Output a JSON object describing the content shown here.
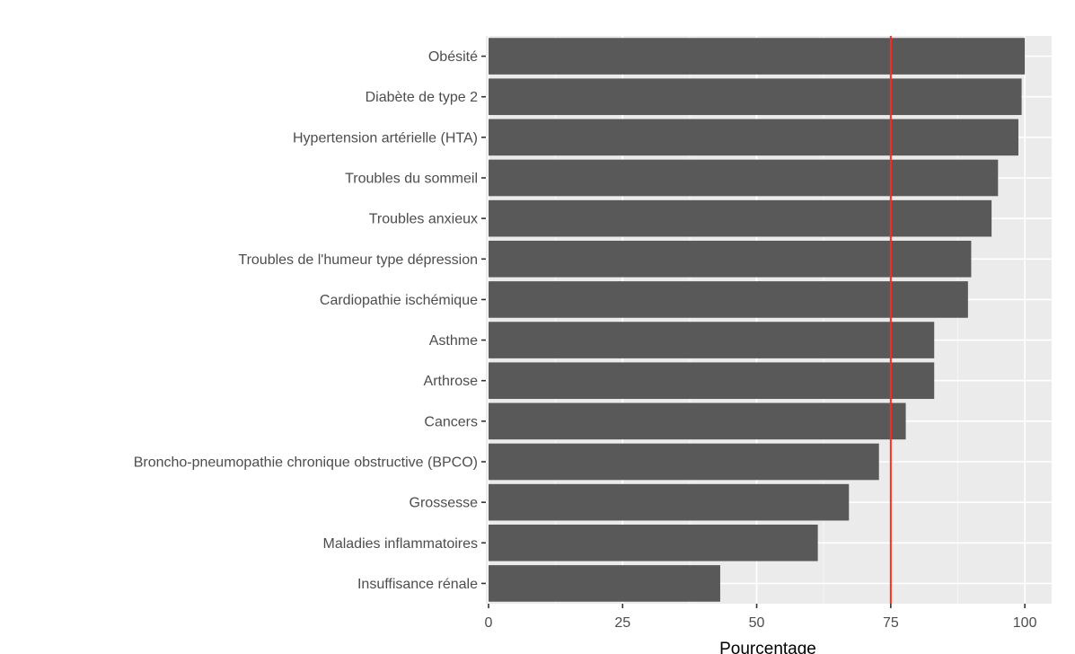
{
  "chart_data": {
    "type": "bar",
    "orientation": "horizontal",
    "categories": [
      "Obésité",
      "Diabète de type 2",
      "Hypertension artérielle (HTA)",
      "Troubles du sommeil",
      "Troubles anxieux",
      "Troubles de l'humeur type dépression",
      "Cardiopathie ischémique",
      "Asthme",
      "Arthrose",
      "Cancers",
      "Broncho-pneumopathie chronique obstructive (BPCO)",
      "Grossesse",
      "Maladies inflammatoires",
      "Insuffisance rénale"
    ],
    "values": [
      100,
      99.4,
      98.8,
      95.0,
      93.8,
      90.0,
      89.4,
      83.1,
      83.1,
      77.8,
      72.8,
      67.2,
      61.4,
      43.2
    ],
    "xlabel": "Pourcentage",
    "ylabel": "",
    "xlim": [
      -0.5,
      105
    ],
    "xticks": [
      0,
      25,
      50,
      75,
      100
    ],
    "xtick_labels": [
      "0",
      "25",
      "50",
      "75",
      "100"
    ],
    "reference_line": {
      "x": 75,
      "color": "#ff2a1a"
    },
    "bar_color": "#595959",
    "panel_background": "#ebebeb",
    "grid": true
  }
}
